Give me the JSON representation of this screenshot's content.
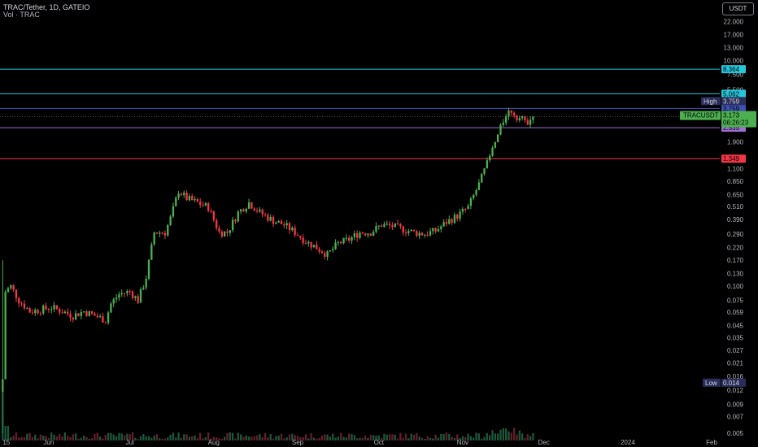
{
  "header": {
    "title": "TRAC/Tether, 1D, GATEIO",
    "volume_label": "Vol · TRAC"
  },
  "currency_button": "USDT",
  "chart_data": {
    "type": "candlestick",
    "symbol": "TRACUSDT",
    "interval": "1D",
    "exchange": "GATEIO",
    "yscale": "log",
    "ylim": [
      0.005,
      30
    ],
    "y_ticks": [
      "22.000",
      "17.000",
      "13.000",
      "10.000",
      "7.500",
      "5.500",
      "1.900",
      "1.100",
      "0.850",
      "0.650",
      "0.510",
      "0.390",
      "0.290",
      "0.220",
      "0.170",
      "0.130",
      "0.100",
      "0.075",
      "0.059",
      "0.045",
      "0.035",
      "0.027",
      "0.021",
      "0.016",
      "0.012",
      "0.009",
      "0.007",
      "0.005"
    ],
    "y_tick_values": [
      22,
      17,
      13,
      10,
      7.5,
      5.5,
      1.9,
      1.1,
      0.85,
      0.65,
      0.51,
      0.39,
      0.29,
      0.22,
      0.17,
      0.13,
      0.1,
      0.075,
      0.059,
      0.045,
      0.035,
      0.027,
      0.021,
      0.016,
      0.012,
      0.009,
      0.007,
      0.005
    ],
    "x_labels": [
      {
        "label": "15",
        "day": 0
      },
      {
        "label": "Jun",
        "day": 17
      },
      {
        "label": "Jul",
        "day": 47
      },
      {
        "label": "Aug",
        "day": 78
      },
      {
        "label": "Sep",
        "day": 109
      },
      {
        "label": "Oct",
        "day": 139
      },
      {
        "label": "Nov",
        "day": 170
      },
      {
        "label": "Dec",
        "day": 200
      },
      {
        "label": "2024",
        "day": 231
      },
      {
        "label": "Feb",
        "day": 262
      }
    ],
    "x_day_range": [
      -1,
      265
    ],
    "levels": [
      {
        "label": "8.364",
        "value": 8.364,
        "color": "#26c6da"
      },
      {
        "label": "5.062",
        "value": 5.062,
        "color": "#26c6da"
      },
      {
        "label": "3.759",
        "value": 3.759,
        "color": "#3f51b5"
      },
      {
        "label": "2.535",
        "value": 2.535,
        "color": "#9c6fd0"
      },
      {
        "label": "1.349",
        "value": 1.349,
        "color": "#f23645"
      }
    ],
    "last_price": {
      "symbol": "TRACUSDT",
      "price": "3.173",
      "value": 3.173,
      "countdown": "06:26:23",
      "color": "#4caf50"
    },
    "high": {
      "label": "High",
      "price": "3.759",
      "value": 3.759
    },
    "low": {
      "label": "Low",
      "price": "0.014",
      "value": 0.014
    },
    "anchors": [
      [
        0,
        0.015
      ],
      [
        1,
        0.09
      ],
      [
        3,
        0.1
      ],
      [
        6,
        0.075
      ],
      [
        10,
        0.06
      ],
      [
        14,
        0.062
      ],
      [
        18,
        0.065
      ],
      [
        22,
        0.06
      ],
      [
        26,
        0.055
      ],
      [
        30,
        0.06
      ],
      [
        34,
        0.055
      ],
      [
        38,
        0.05
      ],
      [
        40,
        0.07
      ],
      [
        43,
        0.085
      ],
      [
        47,
        0.09
      ],
      [
        50,
        0.075
      ],
      [
        53,
        0.12
      ],
      [
        56,
        0.3
      ],
      [
        60,
        0.3
      ],
      [
        62,
        0.4
      ],
      [
        65,
        0.7
      ],
      [
        68,
        0.6
      ],
      [
        72,
        0.55
      ],
      [
        76,
        0.5
      ],
      [
        80,
        0.3
      ],
      [
        83,
        0.3
      ],
      [
        87,
        0.45
      ],
      [
        91,
        0.55
      ],
      [
        95,
        0.45
      ],
      [
        100,
        0.38
      ],
      [
        104,
        0.35
      ],
      [
        108,
        0.3
      ],
      [
        112,
        0.25
      ],
      [
        116,
        0.22
      ],
      [
        120,
        0.19
      ],
      [
        124,
        0.24
      ],
      [
        128,
        0.26
      ],
      [
        132,
        0.3
      ],
      [
        136,
        0.3
      ],
      [
        140,
        0.35
      ],
      [
        144,
        0.34
      ],
      [
        148,
        0.32
      ],
      [
        152,
        0.3
      ],
      [
        156,
        0.29
      ],
      [
        160,
        0.31
      ],
      [
        164,
        0.37
      ],
      [
        168,
        0.42
      ],
      [
        172,
        0.5
      ],
      [
        176,
        0.8
      ],
      [
        180,
        1.4
      ],
      [
        184,
        2.5
      ],
      [
        186,
        3.4
      ],
      [
        188,
        3.6
      ],
      [
        190,
        3.2
      ],
      [
        192,
        3.0
      ],
      [
        194,
        2.8
      ],
      [
        196,
        3.17
      ]
    ]
  }
}
